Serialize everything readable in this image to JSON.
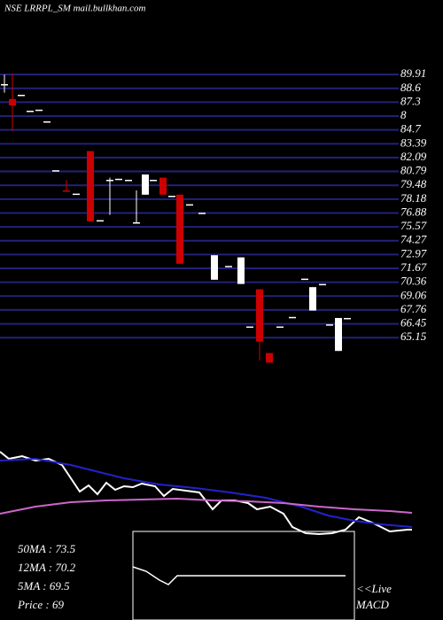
{
  "chart_data": {
    "type": "candlestick",
    "title": "NSE LRRPL_SM mail.bullkhan.com",
    "up_color": "#ffffff",
    "down_color": "#cc0000",
    "grid_color": "#22227a",
    "ylim": [
      62.5,
      90.5
    ],
    "yticks": [
      89.91,
      88.6,
      87.3,
      {
        "value": 85.99,
        "label": "8"
      },
      84.7,
      83.39,
      82.09,
      80.79,
      79.48,
      78.18,
      76.88,
      75.57,
      74.27,
      72.97,
      71.67,
      70.36,
      69.06,
      67.76,
      66.45,
      65.15
    ],
    "x": [
      5,
      14,
      24,
      34,
      44,
      53,
      63,
      75,
      86,
      102,
      113,
      124,
      134,
      145,
      154,
      164,
      173,
      184,
      194,
      203,
      214,
      228,
      242,
      258,
      272,
      282,
      293,
      304,
      316,
      330,
      344,
      353,
      364,
      372,
      382,
      392
    ],
    "xlim": [
      0,
      450
    ],
    "open": [
      89,
      87.6,
      88,
      86.5,
      86.6,
      85.5,
      80.9,
      79,
      78.7,
      82.7,
      76.2,
      80,
      80.1,
      80,
      76,
      78.6,
      80,
      80.2,
      78.5,
      78.6,
      77.7,
      76.9,
      70.6,
      71.9,
      70.2,
      66.2,
      69.7,
      63.7,
      66.2,
      67.1,
      70.7,
      67.7,
      70.2,
      66.4,
      63.9,
      67
    ],
    "high": [
      89.9,
      90,
      88,
      86.5,
      86.6,
      85.5,
      80.9,
      80,
      78.7,
      82.7,
      76.2,
      80.2,
      80.1,
      80,
      79,
      80.5,
      80,
      80.2,
      78.5,
      78.6,
      77.7,
      76.9,
      72.9,
      71.9,
      72.7,
      66.2,
      69.7,
      63.7,
      66.2,
      67.1,
      70.7,
      69.9,
      70.2,
      66.4,
      67,
      67
    ],
    "low": [
      88.2,
      84.6,
      88,
      86.5,
      86.6,
      85.5,
      80.9,
      78.9,
      78.7,
      76.1,
      76.2,
      76.7,
      80.1,
      80,
      76,
      78.6,
      80,
      78.6,
      78.5,
      72.1,
      77.7,
      76.9,
      70.6,
      71.9,
      70.2,
      66.2,
      63,
      62.8,
      66.2,
      67.1,
      70.7,
      67.7,
      70.2,
      66.4,
      63.9,
      67
    ],
    "close": [
      89,
      87,
      88,
      86.5,
      86.6,
      85.5,
      80.9,
      78.9,
      78.7,
      76.1,
      76.2,
      80,
      80.1,
      80,
      76,
      80.5,
      80,
      78.6,
      78.5,
      72.1,
      77.7,
      76.9,
      72.9,
      71.9,
      72.7,
      66.2,
      64.8,
      62.8,
      66.2,
      67.1,
      70.7,
      69.9,
      70.2,
      66.4,
      67,
      67
    ],
    "lower_panel": {
      "xlim": [
        0,
        465
      ],
      "ylim": [
        -5,
        100
      ],
      "series": [
        {
          "color": "#ffffff",
          "x": [
            0,
            10,
            25,
            40,
            55,
            70,
            80,
            90,
            100,
            110,
            120,
            130,
            140,
            150,
            160,
            175,
            185,
            195,
            210,
            225,
            240,
            250,
            265,
            280,
            290,
            305,
            320,
            330,
            345,
            360,
            375,
            390,
            405,
            420,
            440,
            460,
            465
          ],
          "values": [
            90,
            82,
            85,
            80,
            82,
            75,
            60,
            45,
            52,
            42,
            55,
            47,
            51,
            50,
            54,
            51,
            40,
            48,
            46,
            44,
            25,
            35,
            35,
            32,
            25,
            28,
            20,
            5,
            -2,
            -3,
            -2,
            2,
            16,
            10,
            0,
            2,
            2
          ]
        },
        {
          "color": "#2222cc",
          "x": [
            0,
            40,
            80,
            100,
            140,
            180,
            220,
            260,
            300,
            340,
            370,
            400,
            430,
            465
          ],
          "values": [
            80,
            82,
            75,
            70,
            60,
            53,
            49,
            44,
            38,
            28,
            18,
            12,
            8,
            5
          ]
        },
        {
          "color": "#cc66cc",
          "x": [
            0,
            40,
            80,
            120,
            160,
            200,
            240,
            280,
            320,
            360,
            400,
            440,
            465
          ],
          "values": [
            20,
            28,
            33,
            35,
            36,
            37,
            35,
            34,
            32,
            28,
            25,
            23,
            21
          ]
        }
      ]
    },
    "macd": {
      "xlim": [
        150,
        400
      ],
      "ylim": [
        -20,
        20
      ],
      "x": [
        150,
        165,
        180,
        190,
        200,
        390
      ],
      "values": [
        4,
        2,
        -2,
        -4,
        0,
        0
      ]
    },
    "legend": [
      "50MA : 73.5",
      "12MA : 70.2",
      "5MA : 69.5",
      "Price : 69"
    ],
    "live": "<<Live",
    "macd_label": "MACD"
  }
}
